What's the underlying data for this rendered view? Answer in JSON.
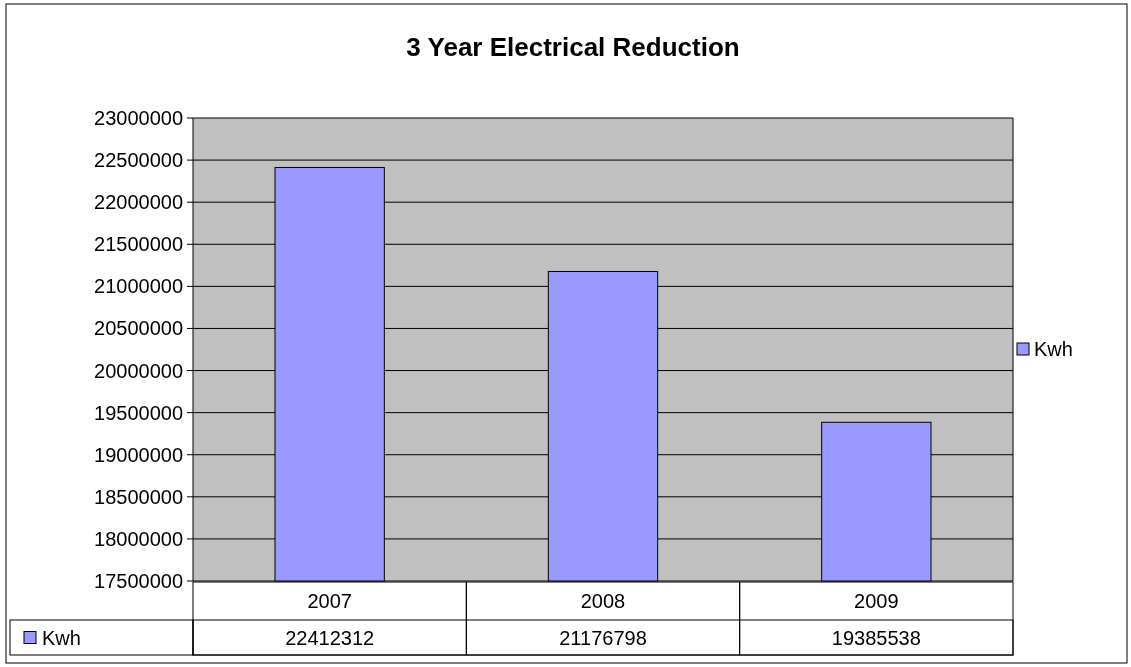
{
  "chart_data": {
    "type": "bar",
    "title": "3 Year Electrical Reduction",
    "categories": [
      "2007",
      "2008",
      "2009"
    ],
    "series": [
      {
        "name": "Kwh",
        "color": "#9999ff",
        "values": [
          22412312,
          21176798,
          19385538
        ]
      }
    ],
    "ylim": [
      17500000,
      23000000
    ],
    "yticks": [
      17500000,
      18000000,
      18500000,
      19000000,
      19500000,
      20000000,
      20500000,
      21000000,
      21500000,
      22000000,
      22500000,
      23000000
    ],
    "grid": "y",
    "legend": "right",
    "data_labels": true
  }
}
